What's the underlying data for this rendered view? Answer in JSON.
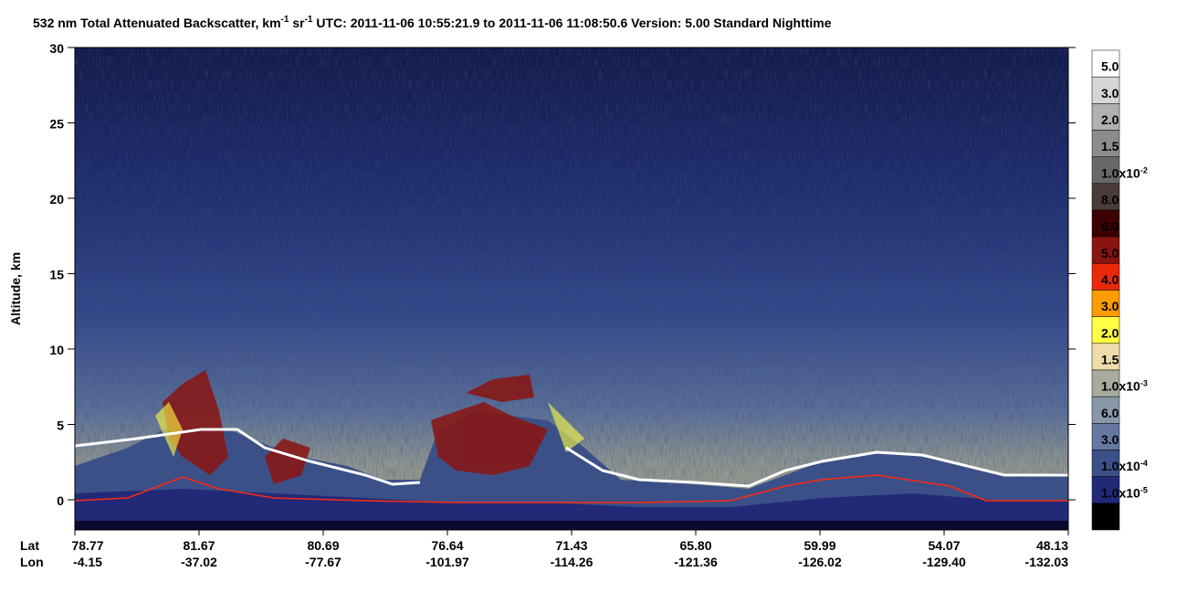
{
  "chart_data": {
    "type": "heatmap",
    "title_parts": [
      "532 nm Total Attenuated Backscatter, km",
      "-1",
      " sr",
      "-1",
      "    UTC:  2011-11-06 10:55:21.9  to  2011-11-06 11:08:50.6    Version: 5.00  Standard  Nighttime"
    ],
    "ylabel": "Altitude, km",
    "ylim": [
      -2,
      30
    ],
    "yticks": [
      0,
      5,
      10,
      15,
      20,
      25,
      30
    ],
    "x_rows": [
      {
        "name": "Lat",
        "labels": [
          "78.77",
          "81.67",
          "80.69",
          "76.64",
          "71.43",
          "65.80",
          "59.99",
          "54.07",
          "48.13"
        ]
      },
      {
        "name": "Lon",
        "labels": [
          "-4.15",
          "-37.02",
          "-77.67",
          "-101.97",
          "-114.26",
          "-121.36",
          "-126.02",
          "-129.40",
          "-132.03"
        ]
      }
    ],
    "colorbar": [
      {
        "color": "#ffffff",
        "label": "5.0"
      },
      {
        "color": "#d6d6d6",
        "label": "3.0"
      },
      {
        "color": "#b0b0b0",
        "label": "2.0"
      },
      {
        "color": "#8c8c8c",
        "label": "1.5"
      },
      {
        "color": "#686868",
        "label": "1.0x10",
        "exp": "-2"
      },
      {
        "color": "#4a3c38",
        "label": "8.0"
      },
      {
        "color": "#3c0000",
        "label": "6.0"
      },
      {
        "color": "#8a1410",
        "label": "5.0"
      },
      {
        "color": "#e82a0a",
        "label": "4.0"
      },
      {
        "color": "#ff9c00",
        "label": "3.0"
      },
      {
        "color": "#ffff44",
        "label": "2.0"
      },
      {
        "color": "#eedcaa",
        "label": "1.5"
      },
      {
        "color": "#a8aa9e",
        "label": "1.0x10",
        "exp": "-3"
      },
      {
        "color": "#8898a8",
        "label": "6.0"
      },
      {
        "color": "#6678a0",
        "label": "3.0"
      },
      {
        "color": "#3c5088",
        "label": "1.0x10",
        "exp": "-4"
      },
      {
        "color": "#222a78",
        "label": "1.0x10",
        "exp": "-5"
      },
      {
        "color": "#000000"
      }
    ]
  }
}
